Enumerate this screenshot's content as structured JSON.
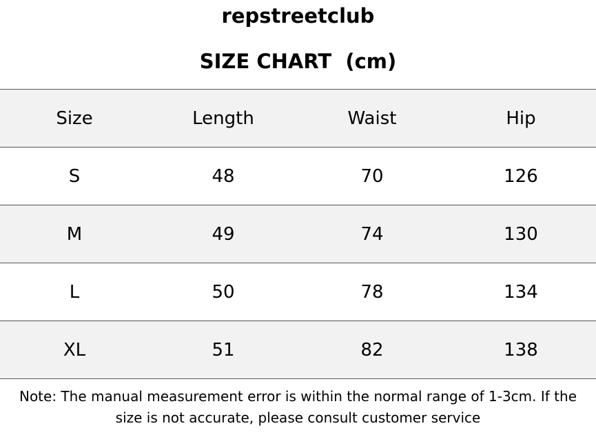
{
  "header": {
    "brand": "repstreetclub",
    "title": "SIZE CHART  (cm)"
  },
  "table": {
    "columns": [
      "Size",
      "Length",
      "Waist",
      "Hip"
    ],
    "rows": [
      [
        "S",
        48,
        70,
        126
      ],
      [
        "M",
        49,
        74,
        130
      ],
      [
        "L",
        50,
        78,
        134
      ],
      [
        "XL",
        51,
        82,
        138
      ]
    ]
  },
  "note": {
    "lines": [
      "Note: The manual measurement error is within the normal range of 1-3cm. If the",
      "size is not accurate, please consult customer service"
    ]
  }
}
